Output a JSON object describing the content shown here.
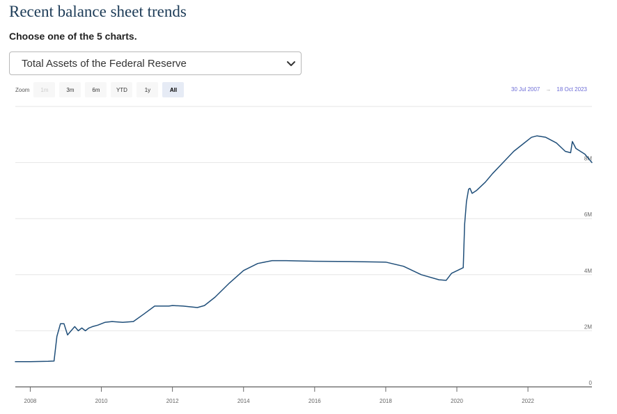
{
  "page": {
    "title": "Recent balance sheet trends",
    "instruction": "Choose one of the 5 charts.",
    "select_value": "Total Assets of the Federal Reserve"
  },
  "icons": {
    "select_chevron": "chevron-down-icon"
  },
  "zoom": {
    "label": "Zoom",
    "buttons": [
      {
        "label": "1m",
        "state": "disabled"
      },
      {
        "label": "3m",
        "state": "normal"
      },
      {
        "label": "6m",
        "state": "normal"
      },
      {
        "label": "YTD",
        "state": "normal"
      },
      {
        "label": "1y",
        "state": "normal"
      },
      {
        "label": "All",
        "state": "active"
      }
    ]
  },
  "range": {
    "from": "30 Jul 2007",
    "to": "18 Oct 2023",
    "arrow": "→"
  },
  "colors": {
    "line": "#1f4e79",
    "title": "#1c3b57",
    "range_text": "#6b6bd6",
    "grid": "#e6e6e6"
  },
  "chart_data": {
    "type": "line",
    "title": "",
    "xlabel": "",
    "ylabel": "",
    "xlim": [
      2007.58,
      2023.8
    ],
    "ylim": [
      0,
      10000000
    ],
    "yticks": [
      {
        "value": 0,
        "label": "0"
      },
      {
        "value": 2000000,
        "label": "2M"
      },
      {
        "value": 4000000,
        "label": "4M"
      },
      {
        "value": 6000000,
        "label": "6M"
      },
      {
        "value": 8000000,
        "label": "8M"
      }
    ],
    "xticks": [
      {
        "value": 2008,
        "label": "2008"
      },
      {
        "value": 2010,
        "label": "2010"
      },
      {
        "value": 2012,
        "label": "2012"
      },
      {
        "value": 2014,
        "label": "2014"
      },
      {
        "value": 2016,
        "label": "2016"
      },
      {
        "value": 2018,
        "label": "2018"
      },
      {
        "value": 2020,
        "label": "2020"
      },
      {
        "value": 2022,
        "label": "2022"
      }
    ],
    "grid": true,
    "legend": "none",
    "series": [
      {
        "x": [
          2007.58,
          2008.0,
          2008.5,
          2008.67,
          2008.75,
          2008.85,
          2008.95,
          2009.05,
          2009.15,
          2009.25,
          2009.35,
          2009.45,
          2009.55,
          2009.65,
          2009.75,
          2009.9,
          2010.1,
          2010.3,
          2010.6,
          2010.9,
          2011.2,
          2011.5,
          2011.9,
          2012.0,
          2012.3,
          2012.7,
          2012.9,
          2013.2,
          2013.6,
          2014.0,
          2014.4,
          2014.8,
          2015.2,
          2016.0,
          2017.0,
          2018.0,
          2018.5,
          2019.0,
          2019.5,
          2019.7,
          2019.85,
          2020.1,
          2020.18,
          2020.22,
          2020.27,
          2020.33,
          2020.37,
          2020.43,
          2020.55,
          2020.8,
          2021.0,
          2021.3,
          2021.6,
          2021.9,
          2022.1,
          2022.25,
          2022.5,
          2022.8,
          2023.05,
          2023.2,
          2023.25,
          2023.35,
          2023.6,
          2023.8
        ],
        "y": [
          900000,
          900000,
          910000,
          920000,
          1800000,
          2250000,
          2250000,
          1850000,
          2000000,
          2150000,
          2000000,
          2100000,
          2000000,
          2100000,
          2150000,
          2200000,
          2300000,
          2330000,
          2300000,
          2330000,
          2600000,
          2880000,
          2880000,
          2900000,
          2880000,
          2830000,
          2900000,
          3200000,
          3700000,
          4150000,
          4400000,
          4500000,
          4500000,
          4480000,
          4470000,
          4450000,
          4300000,
          4000000,
          3820000,
          3800000,
          4050000,
          4200000,
          4250000,
          5800000,
          6600000,
          7050000,
          7080000,
          6900000,
          7000000,
          7300000,
          7600000,
          8000000,
          8400000,
          8700000,
          8900000,
          8950000,
          8900000,
          8700000,
          8400000,
          8350000,
          8750000,
          8500000,
          8300000,
          8000000
        ]
      }
    ]
  }
}
